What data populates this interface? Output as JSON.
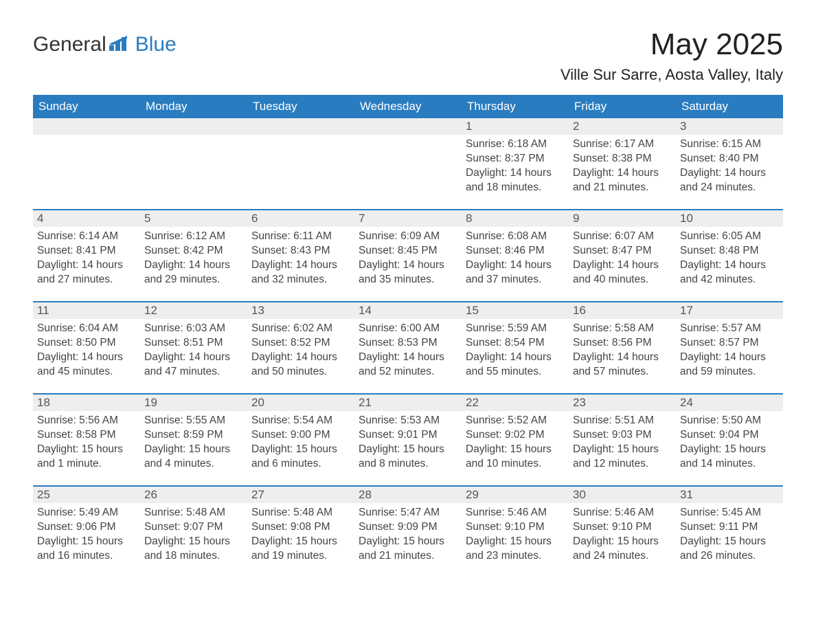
{
  "brand": {
    "part1": "General",
    "part2": "Blue"
  },
  "title": "May 2025",
  "subtitle": "Ville Sur Sarre, Aosta Valley, Italy",
  "colors": {
    "header_bg": "#2a7cc0",
    "header_text": "#ffffff",
    "daynum_bg": "#eeeeee",
    "week_border": "#2a7cc0",
    "body_text": "#444444",
    "page_bg": "#ffffff",
    "brand_accent": "#2a7cc0"
  },
  "typography": {
    "title_fontsize": 44,
    "subtitle_fontsize": 22,
    "dow_fontsize": 17,
    "daynum_fontsize": 17,
    "body_fontsize": 15.5
  },
  "daysOfWeek": [
    "Sunday",
    "Monday",
    "Tuesday",
    "Wednesday",
    "Thursday",
    "Friday",
    "Saturday"
  ],
  "weeks": [
    {
      "days": [
        {
          "num": "",
          "sunrise": "",
          "sunset": "",
          "daylight": ""
        },
        {
          "num": "",
          "sunrise": "",
          "sunset": "",
          "daylight": ""
        },
        {
          "num": "",
          "sunrise": "",
          "sunset": "",
          "daylight": ""
        },
        {
          "num": "",
          "sunrise": "",
          "sunset": "",
          "daylight": ""
        },
        {
          "num": "1",
          "sunrise": "Sunrise: 6:18 AM",
          "sunset": "Sunset: 8:37 PM",
          "daylight": "Daylight: 14 hours and 18 minutes."
        },
        {
          "num": "2",
          "sunrise": "Sunrise: 6:17 AM",
          "sunset": "Sunset: 8:38 PM",
          "daylight": "Daylight: 14 hours and 21 minutes."
        },
        {
          "num": "3",
          "sunrise": "Sunrise: 6:15 AM",
          "sunset": "Sunset: 8:40 PM",
          "daylight": "Daylight: 14 hours and 24 minutes."
        }
      ]
    },
    {
      "days": [
        {
          "num": "4",
          "sunrise": "Sunrise: 6:14 AM",
          "sunset": "Sunset: 8:41 PM",
          "daylight": "Daylight: 14 hours and 27 minutes."
        },
        {
          "num": "5",
          "sunrise": "Sunrise: 6:12 AM",
          "sunset": "Sunset: 8:42 PM",
          "daylight": "Daylight: 14 hours and 29 minutes."
        },
        {
          "num": "6",
          "sunrise": "Sunrise: 6:11 AM",
          "sunset": "Sunset: 8:43 PM",
          "daylight": "Daylight: 14 hours and 32 minutes."
        },
        {
          "num": "7",
          "sunrise": "Sunrise: 6:09 AM",
          "sunset": "Sunset: 8:45 PM",
          "daylight": "Daylight: 14 hours and 35 minutes."
        },
        {
          "num": "8",
          "sunrise": "Sunrise: 6:08 AM",
          "sunset": "Sunset: 8:46 PM",
          "daylight": "Daylight: 14 hours and 37 minutes."
        },
        {
          "num": "9",
          "sunrise": "Sunrise: 6:07 AM",
          "sunset": "Sunset: 8:47 PM",
          "daylight": "Daylight: 14 hours and 40 minutes."
        },
        {
          "num": "10",
          "sunrise": "Sunrise: 6:05 AM",
          "sunset": "Sunset: 8:48 PM",
          "daylight": "Daylight: 14 hours and 42 minutes."
        }
      ]
    },
    {
      "days": [
        {
          "num": "11",
          "sunrise": "Sunrise: 6:04 AM",
          "sunset": "Sunset: 8:50 PM",
          "daylight": "Daylight: 14 hours and 45 minutes."
        },
        {
          "num": "12",
          "sunrise": "Sunrise: 6:03 AM",
          "sunset": "Sunset: 8:51 PM",
          "daylight": "Daylight: 14 hours and 47 minutes."
        },
        {
          "num": "13",
          "sunrise": "Sunrise: 6:02 AM",
          "sunset": "Sunset: 8:52 PM",
          "daylight": "Daylight: 14 hours and 50 minutes."
        },
        {
          "num": "14",
          "sunrise": "Sunrise: 6:00 AM",
          "sunset": "Sunset: 8:53 PM",
          "daylight": "Daylight: 14 hours and 52 minutes."
        },
        {
          "num": "15",
          "sunrise": "Sunrise: 5:59 AM",
          "sunset": "Sunset: 8:54 PM",
          "daylight": "Daylight: 14 hours and 55 minutes."
        },
        {
          "num": "16",
          "sunrise": "Sunrise: 5:58 AM",
          "sunset": "Sunset: 8:56 PM",
          "daylight": "Daylight: 14 hours and 57 minutes."
        },
        {
          "num": "17",
          "sunrise": "Sunrise: 5:57 AM",
          "sunset": "Sunset: 8:57 PM",
          "daylight": "Daylight: 14 hours and 59 minutes."
        }
      ]
    },
    {
      "days": [
        {
          "num": "18",
          "sunrise": "Sunrise: 5:56 AM",
          "sunset": "Sunset: 8:58 PM",
          "daylight": "Daylight: 15 hours and 1 minute."
        },
        {
          "num": "19",
          "sunrise": "Sunrise: 5:55 AM",
          "sunset": "Sunset: 8:59 PM",
          "daylight": "Daylight: 15 hours and 4 minutes."
        },
        {
          "num": "20",
          "sunrise": "Sunrise: 5:54 AM",
          "sunset": "Sunset: 9:00 PM",
          "daylight": "Daylight: 15 hours and 6 minutes."
        },
        {
          "num": "21",
          "sunrise": "Sunrise: 5:53 AM",
          "sunset": "Sunset: 9:01 PM",
          "daylight": "Daylight: 15 hours and 8 minutes."
        },
        {
          "num": "22",
          "sunrise": "Sunrise: 5:52 AM",
          "sunset": "Sunset: 9:02 PM",
          "daylight": "Daylight: 15 hours and 10 minutes."
        },
        {
          "num": "23",
          "sunrise": "Sunrise: 5:51 AM",
          "sunset": "Sunset: 9:03 PM",
          "daylight": "Daylight: 15 hours and 12 minutes."
        },
        {
          "num": "24",
          "sunrise": "Sunrise: 5:50 AM",
          "sunset": "Sunset: 9:04 PM",
          "daylight": "Daylight: 15 hours and 14 minutes."
        }
      ]
    },
    {
      "days": [
        {
          "num": "25",
          "sunrise": "Sunrise: 5:49 AM",
          "sunset": "Sunset: 9:06 PM",
          "daylight": "Daylight: 15 hours and 16 minutes."
        },
        {
          "num": "26",
          "sunrise": "Sunrise: 5:48 AM",
          "sunset": "Sunset: 9:07 PM",
          "daylight": "Daylight: 15 hours and 18 minutes."
        },
        {
          "num": "27",
          "sunrise": "Sunrise: 5:48 AM",
          "sunset": "Sunset: 9:08 PM",
          "daylight": "Daylight: 15 hours and 19 minutes."
        },
        {
          "num": "28",
          "sunrise": "Sunrise: 5:47 AM",
          "sunset": "Sunset: 9:09 PM",
          "daylight": "Daylight: 15 hours and 21 minutes."
        },
        {
          "num": "29",
          "sunrise": "Sunrise: 5:46 AM",
          "sunset": "Sunset: 9:10 PM",
          "daylight": "Daylight: 15 hours and 23 minutes."
        },
        {
          "num": "30",
          "sunrise": "Sunrise: 5:46 AM",
          "sunset": "Sunset: 9:10 PM",
          "daylight": "Daylight: 15 hours and 24 minutes."
        },
        {
          "num": "31",
          "sunrise": "Sunrise: 5:45 AM",
          "sunset": "Sunset: 9:11 PM",
          "daylight": "Daylight: 15 hours and 26 minutes."
        }
      ]
    }
  ]
}
